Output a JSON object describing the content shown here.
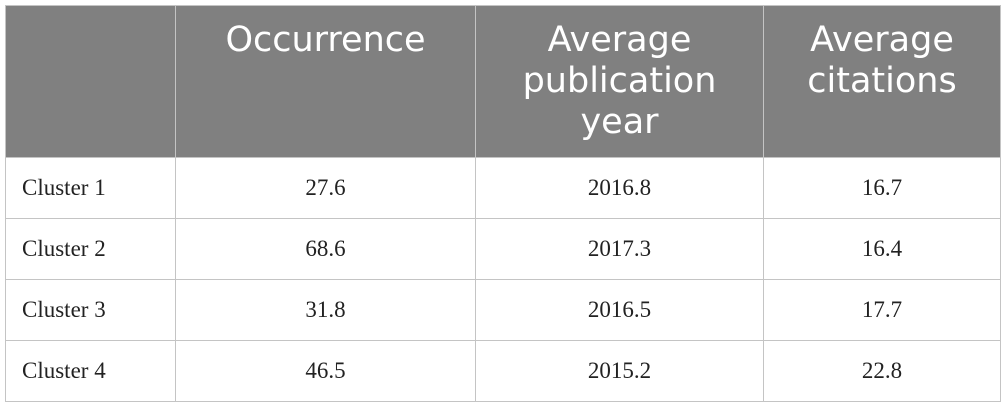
{
  "table": {
    "columns": [
      "Occurrence",
      "Average publication year",
      "Average citations"
    ],
    "rows": [
      [
        "Cluster 1",
        27.6,
        2016.8,
        16.7
      ],
      [
        "Cluster 2",
        68.6,
        2017.3,
        16.4
      ],
      [
        "Cluster 3",
        31.8,
        2016.5,
        17.7
      ],
      [
        "Cluster 4",
        46.5,
        2015.2,
        22.8
      ]
    ]
  }
}
